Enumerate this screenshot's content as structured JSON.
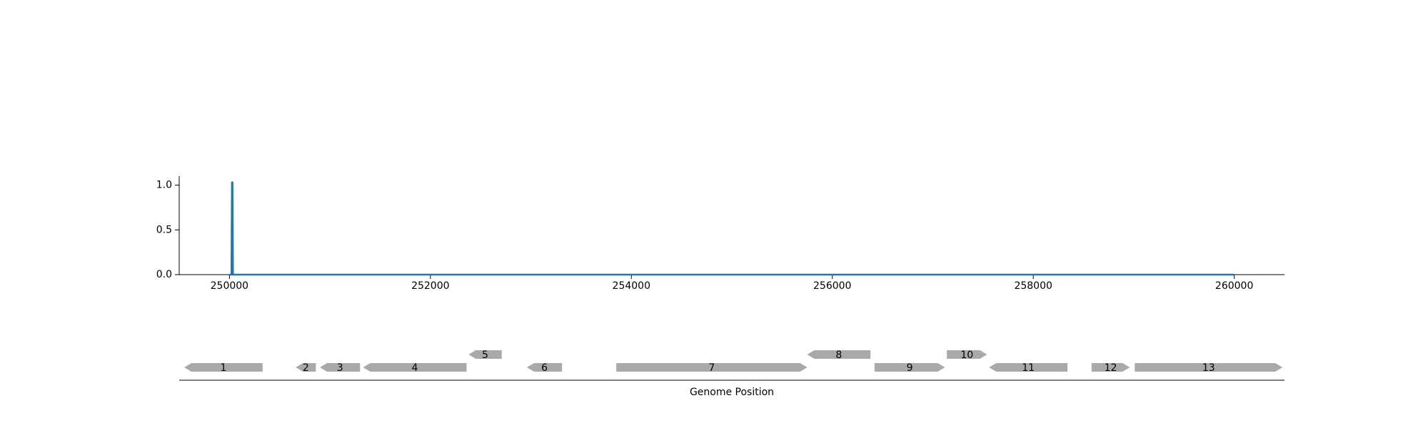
{
  "chart_data": [
    {
      "type": "line",
      "title": "",
      "xlabel": "",
      "ylabel": "",
      "xlim": [
        249500,
        260500
      ],
      "ylim": [
        0,
        1.1
      ],
      "x_ticks": [
        250000,
        252000,
        254000,
        256000,
        258000,
        260000
      ],
      "y_ticks": [
        0.0,
        0.5,
        1.0
      ],
      "x_tick_labels": [
        "250000",
        "252000",
        "254000",
        "256000",
        "258000",
        "260000"
      ],
      "y_tick_labels": [
        "0.0",
        "0.5",
        "1.0"
      ],
      "grid": false,
      "series": [
        {
          "color": "#1f77b4",
          "x": [
            250000,
            250020,
            250025,
            250030,
            250035,
            260000
          ],
          "y": [
            0,
            0,
            1.03,
            1.03,
            0,
            0
          ]
        }
      ]
    },
    {
      "type": "gene_map",
      "xlabel": "Genome Position",
      "xlim": [
        249500,
        260500
      ],
      "gene_color": "#a9a9a9",
      "genes": [
        {
          "label": "1",
          "start": 249550,
          "end": 250330,
          "strand": "-",
          "row": 0
        },
        {
          "label": "2",
          "start": 250660,
          "end": 250860,
          "strand": "-",
          "row": 0
        },
        {
          "label": "3",
          "start": 250900,
          "end": 251300,
          "strand": "-",
          "row": 0
        },
        {
          "label": "4",
          "start": 251330,
          "end": 252360,
          "strand": "-",
          "row": 0
        },
        {
          "label": "5",
          "start": 252380,
          "end": 252710,
          "strand": "-",
          "row": 1
        },
        {
          "label": "6",
          "start": 252960,
          "end": 253310,
          "strand": "-",
          "row": 0
        },
        {
          "label": "7",
          "start": 253850,
          "end": 255750,
          "strand": "+",
          "row": 0
        },
        {
          "label": "8",
          "start": 255750,
          "end": 256380,
          "strand": "-",
          "row": 1
        },
        {
          "label": "9",
          "start": 256420,
          "end": 257120,
          "strand": "+",
          "row": 0
        },
        {
          "label": "10",
          "start": 257140,
          "end": 257540,
          "strand": "+",
          "row": 1
        },
        {
          "label": "11",
          "start": 257560,
          "end": 258340,
          "strand": "-",
          "row": 0
        },
        {
          "label": "12",
          "start": 258580,
          "end": 258960,
          "strand": "+",
          "row": 0
        },
        {
          "label": "13",
          "start": 259010,
          "end": 260480,
          "strand": "+",
          "row": 0
        }
      ]
    }
  ]
}
